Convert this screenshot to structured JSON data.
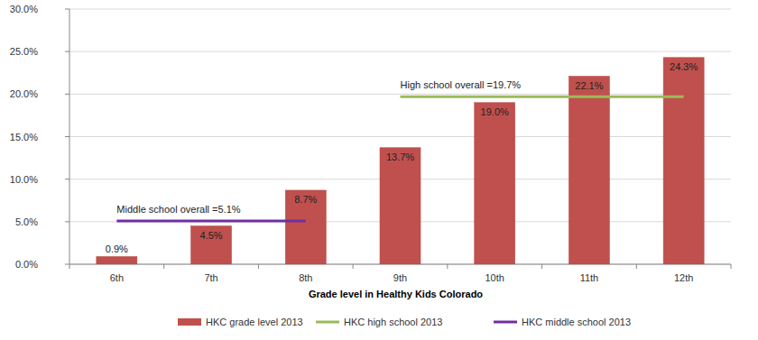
{
  "chart_data": {
    "type": "bar",
    "x_label": "Grade level in Healthy Kids Colorado",
    "categories": [
      "6th",
      "7th",
      "8th",
      "9th",
      "10th",
      "11th",
      "12th"
    ],
    "series": [
      {
        "name": "HKC grade level 2013",
        "type": "bar",
        "color": "#c0504d",
        "values": [
          0.9,
          4.5,
          8.7,
          13.7,
          19.0,
          22.1,
          24.3
        ],
        "value_labels": [
          "0.9%",
          "4.5%",
          "8.7%",
          "13.7%",
          "19.0%",
          "22.1%",
          "24.3%"
        ]
      },
      {
        "name": "HKC high school 2013",
        "type": "line",
        "color": "#9bbb59",
        "values": [
          null,
          null,
          null,
          19.7,
          19.7,
          19.7,
          19.7
        ],
        "annotation": "High school overall =19.7%"
      },
      {
        "name": "HKC middle school 2013",
        "type": "line",
        "color": "#7030a0",
        "values": [
          5.1,
          5.1,
          5.1,
          null,
          null,
          null,
          null
        ],
        "annotation": "Middle school overall =5.1%"
      }
    ],
    "ylim": [
      0,
      30
    ],
    "yticks": [
      {
        "value": 0,
        "label": "0.0%"
      },
      {
        "value": 5,
        "label": "5.0%"
      },
      {
        "value": 10,
        "label": "10.0%"
      },
      {
        "value": 15,
        "label": "15.0%"
      },
      {
        "value": 20,
        "label": "20.0%"
      },
      {
        "value": 25,
        "label": "25.0%"
      },
      {
        "value": 30,
        "label": "30.0%"
      }
    ],
    "grid": true,
    "data_labels": true,
    "legend": "bottom"
  }
}
